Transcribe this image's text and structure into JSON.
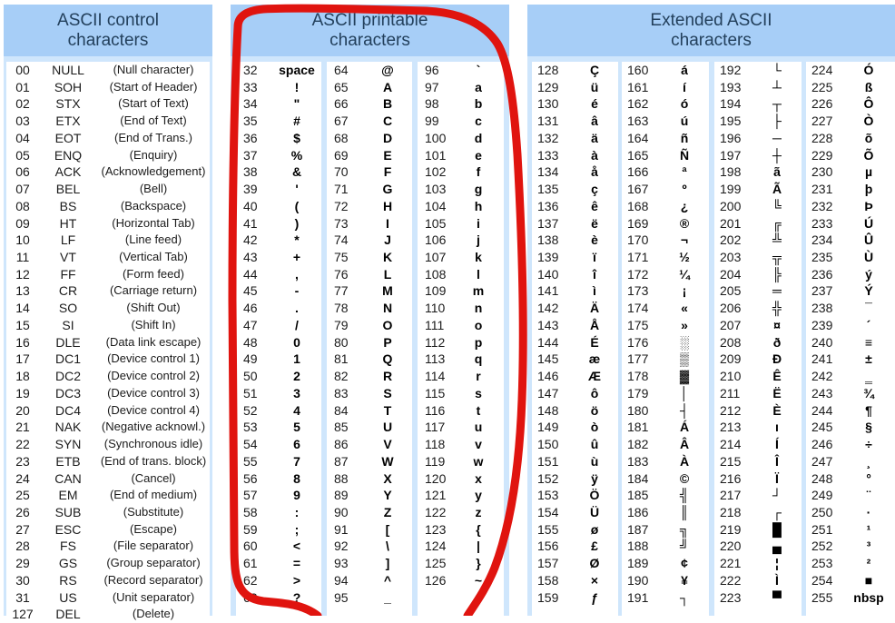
{
  "headers": {
    "control": [
      "ASCII control",
      "characters"
    ],
    "printable": [
      "ASCII printable",
      "characters"
    ],
    "extended": [
      "Extended ASCII",
      "characters"
    ]
  },
  "control_rows": [
    [
      "00",
      "NULL",
      "(Null character)"
    ],
    [
      "01",
      "SOH",
      "(Start of Header)"
    ],
    [
      "02",
      "STX",
      "(Start of Text)"
    ],
    [
      "03",
      "ETX",
      "(End of Text)"
    ],
    [
      "04",
      "EOT",
      "(End of Trans.)"
    ],
    [
      "05",
      "ENQ",
      "(Enquiry)"
    ],
    [
      "06",
      "ACK",
      "(Acknowledgement)"
    ],
    [
      "07",
      "BEL",
      "(Bell)"
    ],
    [
      "08",
      "BS",
      "(Backspace)"
    ],
    [
      "09",
      "HT",
      "(Horizontal Tab)"
    ],
    [
      "10",
      "LF",
      "(Line feed)"
    ],
    [
      "11",
      "VT",
      "(Vertical Tab)"
    ],
    [
      "12",
      "FF",
      "(Form feed)"
    ],
    [
      "13",
      "CR",
      "(Carriage return)"
    ],
    [
      "14",
      "SO",
      "(Shift Out)"
    ],
    [
      "15",
      "SI",
      "(Shift In)"
    ],
    [
      "16",
      "DLE",
      "(Data link escape)"
    ],
    [
      "17",
      "DC1",
      "(Device control 1)"
    ],
    [
      "18",
      "DC2",
      "(Device control 2)"
    ],
    [
      "19",
      "DC3",
      "(Device control 3)"
    ],
    [
      "20",
      "DC4",
      "(Device control 4)"
    ],
    [
      "21",
      "NAK",
      "(Negative acknowl.)"
    ],
    [
      "22",
      "SYN",
      "(Synchronous idle)"
    ],
    [
      "23",
      "ETB",
      "(End of trans. block)"
    ],
    [
      "24",
      "CAN",
      "(Cancel)"
    ],
    [
      "25",
      "EM",
      "(End of medium)"
    ],
    [
      "26",
      "SUB",
      "(Substitute)"
    ],
    [
      "27",
      "ESC",
      "(Escape)"
    ],
    [
      "28",
      "FS",
      "(File separator)"
    ],
    [
      "29",
      "GS",
      "(Group separator)"
    ],
    [
      "30",
      "RS",
      "(Record separator)"
    ],
    [
      "31",
      "US",
      "(Unit separator)"
    ],
    [
      "127",
      "DEL",
      "(Delete)"
    ]
  ],
  "printable_cols": [
    [
      [
        "32",
        "space"
      ],
      [
        "33",
        "!"
      ],
      [
        "34",
        "\""
      ],
      [
        "35",
        "#"
      ],
      [
        "36",
        "$"
      ],
      [
        "37",
        "%"
      ],
      [
        "38",
        "&"
      ],
      [
        "39",
        "'"
      ],
      [
        "40",
        "("
      ],
      [
        "41",
        ")"
      ],
      [
        "42",
        "*"
      ],
      [
        "43",
        "+"
      ],
      [
        "44",
        ","
      ],
      [
        "45",
        "-"
      ],
      [
        "46",
        "."
      ],
      [
        "47",
        "/"
      ],
      [
        "48",
        "0"
      ],
      [
        "49",
        "1"
      ],
      [
        "50",
        "2"
      ],
      [
        "51",
        "3"
      ],
      [
        "52",
        "4"
      ],
      [
        "53",
        "5"
      ],
      [
        "54",
        "6"
      ],
      [
        "55",
        "7"
      ],
      [
        "56",
        "8"
      ],
      [
        "57",
        "9"
      ],
      [
        "58",
        ":"
      ],
      [
        "59",
        ";"
      ],
      [
        "60",
        "<"
      ],
      [
        "61",
        "="
      ],
      [
        "62",
        ">"
      ],
      [
        "63",
        "?"
      ]
    ],
    [
      [
        "64",
        "@"
      ],
      [
        "65",
        "A"
      ],
      [
        "66",
        "B"
      ],
      [
        "67",
        "C"
      ],
      [
        "68",
        "D"
      ],
      [
        "69",
        "E"
      ],
      [
        "70",
        "F"
      ],
      [
        "71",
        "G"
      ],
      [
        "72",
        "H"
      ],
      [
        "73",
        "I"
      ],
      [
        "74",
        "J"
      ],
      [
        "75",
        "K"
      ],
      [
        "76",
        "L"
      ],
      [
        "77",
        "M"
      ],
      [
        "78",
        "N"
      ],
      [
        "79",
        "O"
      ],
      [
        "80",
        "P"
      ],
      [
        "81",
        "Q"
      ],
      [
        "82",
        "R"
      ],
      [
        "83",
        "S"
      ],
      [
        "84",
        "T"
      ],
      [
        "85",
        "U"
      ],
      [
        "86",
        "V"
      ],
      [
        "87",
        "W"
      ],
      [
        "88",
        "X"
      ],
      [
        "89",
        "Y"
      ],
      [
        "90",
        "Z"
      ],
      [
        "91",
        "["
      ],
      [
        "92",
        "\\"
      ],
      [
        "93",
        "]"
      ],
      [
        "94",
        "^"
      ],
      [
        "95",
        "_"
      ]
    ],
    [
      [
        "96",
        "`"
      ],
      [
        "97",
        "a"
      ],
      [
        "98",
        "b"
      ],
      [
        "99",
        "c"
      ],
      [
        "100",
        "d"
      ],
      [
        "101",
        "e"
      ],
      [
        "102",
        "f"
      ],
      [
        "103",
        "g"
      ],
      [
        "104",
        "h"
      ],
      [
        "105",
        "i"
      ],
      [
        "106",
        "j"
      ],
      [
        "107",
        "k"
      ],
      [
        "108",
        "l"
      ],
      [
        "109",
        "m"
      ],
      [
        "110",
        "n"
      ],
      [
        "111",
        "o"
      ],
      [
        "112",
        "p"
      ],
      [
        "113",
        "q"
      ],
      [
        "114",
        "r"
      ],
      [
        "115",
        "s"
      ],
      [
        "116",
        "t"
      ],
      [
        "117",
        "u"
      ],
      [
        "118",
        "v"
      ],
      [
        "119",
        "w"
      ],
      [
        "120",
        "x"
      ],
      [
        "121",
        "y"
      ],
      [
        "122",
        "z"
      ],
      [
        "123",
        "{"
      ],
      [
        "124",
        "|"
      ],
      [
        "125",
        "}"
      ],
      [
        "126",
        "~"
      ],
      [
        "",
        ""
      ]
    ]
  ],
  "extended_cols": [
    [
      [
        "128",
        "Ç"
      ],
      [
        "129",
        "ü"
      ],
      [
        "130",
        "é"
      ],
      [
        "131",
        "â"
      ],
      [
        "132",
        "ä"
      ],
      [
        "133",
        "à"
      ],
      [
        "134",
        "å"
      ],
      [
        "135",
        "ç"
      ],
      [
        "136",
        "ê"
      ],
      [
        "137",
        "ë"
      ],
      [
        "138",
        "è"
      ],
      [
        "139",
        "ï"
      ],
      [
        "140",
        "î"
      ],
      [
        "141",
        "ì"
      ],
      [
        "142",
        "Ä"
      ],
      [
        "143",
        "Å"
      ],
      [
        "144",
        "É"
      ],
      [
        "145",
        "æ"
      ],
      [
        "146",
        "Æ"
      ],
      [
        "147",
        "ô"
      ],
      [
        "148",
        "ö"
      ],
      [
        "149",
        "ò"
      ],
      [
        "150",
        "û"
      ],
      [
        "151",
        "ù"
      ],
      [
        "152",
        "ÿ"
      ],
      [
        "153",
        "Ö"
      ],
      [
        "154",
        "Ü"
      ],
      [
        "155",
        "ø"
      ],
      [
        "156",
        "£"
      ],
      [
        "157",
        "Ø"
      ],
      [
        "158",
        "×"
      ],
      [
        "159",
        "ƒ"
      ]
    ],
    [
      [
        "160",
        "á"
      ],
      [
        "161",
        "í"
      ],
      [
        "162",
        "ó"
      ],
      [
        "163",
        "ú"
      ],
      [
        "164",
        "ñ"
      ],
      [
        "165",
        "Ñ"
      ],
      [
        "166",
        "ª"
      ],
      [
        "167",
        "º"
      ],
      [
        "168",
        "¿"
      ],
      [
        "169",
        "®"
      ],
      [
        "170",
        "¬"
      ],
      [
        "171",
        "½"
      ],
      [
        "172",
        "¼"
      ],
      [
        "173",
        "¡"
      ],
      [
        "174",
        "«"
      ],
      [
        "175",
        "»"
      ],
      [
        "176",
        "░"
      ],
      [
        "177",
        "▒"
      ],
      [
        "178",
        "▓"
      ],
      [
        "179",
        "│"
      ],
      [
        "180",
        "┤"
      ],
      [
        "181",
        "Á"
      ],
      [
        "182",
        "Â"
      ],
      [
        "183",
        "À"
      ],
      [
        "184",
        "©"
      ],
      [
        "185",
        "╣"
      ],
      [
        "186",
        "║"
      ],
      [
        "187",
        "╗"
      ],
      [
        "188",
        "╝"
      ],
      [
        "189",
        "¢"
      ],
      [
        "190",
        "¥"
      ],
      [
        "191",
        "┐"
      ]
    ],
    [
      [
        "192",
        "└"
      ],
      [
        "193",
        "┴"
      ],
      [
        "194",
        "┬"
      ],
      [
        "195",
        "├"
      ],
      [
        "196",
        "─"
      ],
      [
        "197",
        "┼"
      ],
      [
        "198",
        "ã"
      ],
      [
        "199",
        "Ã"
      ],
      [
        "200",
        "╚"
      ],
      [
        "201",
        "╔"
      ],
      [
        "202",
        "╩"
      ],
      [
        "203",
        "╦"
      ],
      [
        "204",
        "╠"
      ],
      [
        "205",
        "═"
      ],
      [
        "206",
        "╬"
      ],
      [
        "207",
        "¤"
      ],
      [
        "208",
        "ð"
      ],
      [
        "209",
        "Ð"
      ],
      [
        "210",
        "Ê"
      ],
      [
        "211",
        "Ë"
      ],
      [
        "212",
        "È"
      ],
      [
        "213",
        "ı"
      ],
      [
        "214",
        "Í"
      ],
      [
        "215",
        "Î"
      ],
      [
        "216",
        "Ï"
      ],
      [
        "217",
        "┘"
      ],
      [
        "218",
        "┌"
      ],
      [
        "219",
        "█"
      ],
      [
        "220",
        "▄"
      ],
      [
        "221",
        "¦"
      ],
      [
        "222",
        "Ì"
      ],
      [
        "223",
        "▀"
      ]
    ],
    [
      [
        "224",
        "Ó"
      ],
      [
        "225",
        "ß"
      ],
      [
        "226",
        "Ô"
      ],
      [
        "227",
        "Ò"
      ],
      [
        "228",
        "õ"
      ],
      [
        "229",
        "Õ"
      ],
      [
        "230",
        "µ"
      ],
      [
        "231",
        "þ"
      ],
      [
        "232",
        "Þ"
      ],
      [
        "233",
        "Ú"
      ],
      [
        "234",
        "Û"
      ],
      [
        "235",
        "Ù"
      ],
      [
        "236",
        "ý"
      ],
      [
        "237",
        "Ý"
      ],
      [
        "238",
        "¯"
      ],
      [
        "239",
        "´"
      ],
      [
        "240",
        "≡"
      ],
      [
        "241",
        "±"
      ],
      [
        "242",
        "‗"
      ],
      [
        "243",
        "¾"
      ],
      [
        "244",
        "¶"
      ],
      [
        "245",
        "§"
      ],
      [
        "246",
        "÷"
      ],
      [
        "247",
        "¸"
      ],
      [
        "248",
        "°"
      ],
      [
        "249",
        "¨"
      ],
      [
        "250",
        "·"
      ],
      [
        "251",
        "¹"
      ],
      [
        "252",
        "³"
      ],
      [
        "253",
        "²"
      ],
      [
        "254",
        "■"
      ],
      [
        "255",
        "nbsp"
      ]
    ]
  ],
  "colors": {
    "panel": "#cfe6fc",
    "header": "#a7cef7",
    "header_text": "#23405c",
    "annotation": "#e0140f"
  }
}
